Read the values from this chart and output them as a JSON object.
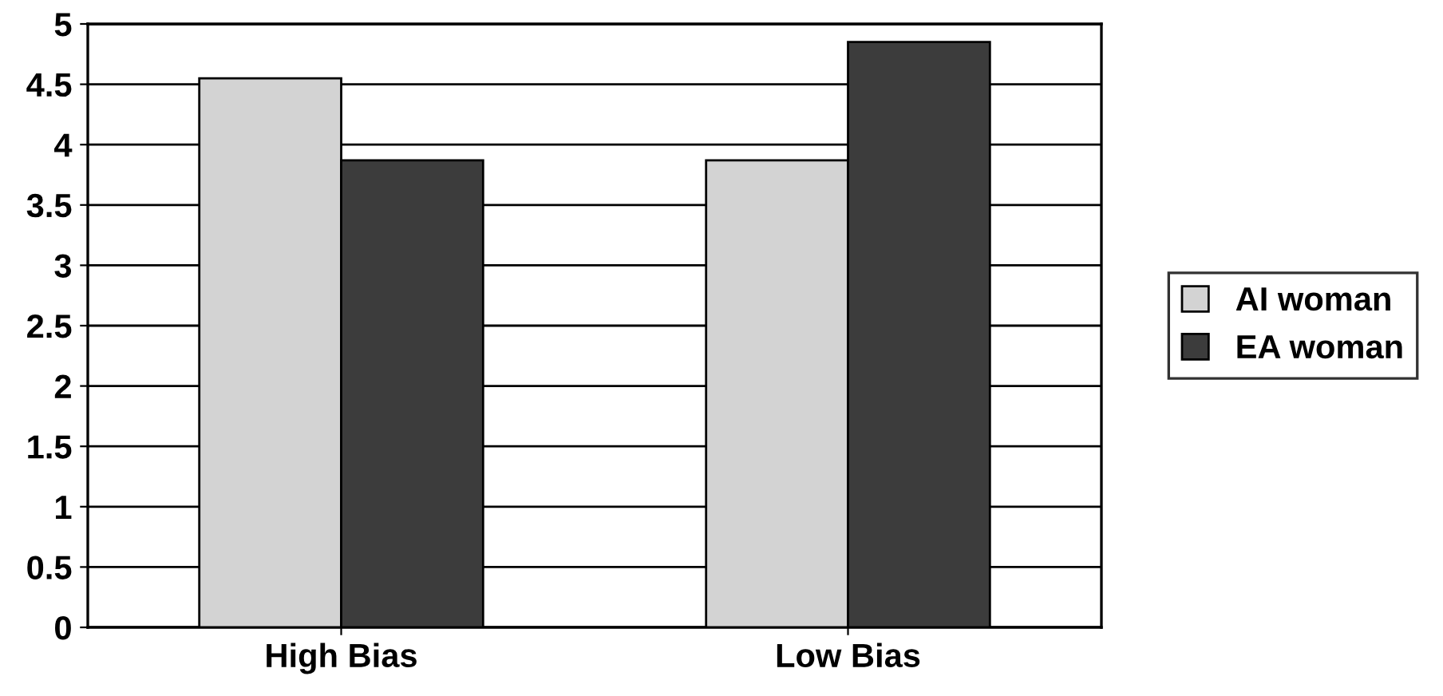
{
  "chart_data": {
    "type": "bar",
    "categories": [
      "High Bias",
      "Low Bias"
    ],
    "series": [
      {
        "name": "AI woman",
        "color": "#d3d3d3",
        "values": [
          4.55,
          3.87
        ]
      },
      {
        "name": "EA woman",
        "color": "#3c3c3c",
        "values": [
          3.87,
          4.85
        ]
      }
    ],
    "ylim": [
      0,
      5
    ],
    "yticks": [
      0,
      0.5,
      1,
      1.5,
      2,
      2.5,
      3,
      3.5,
      4,
      4.5,
      5
    ],
    "grid": "y",
    "legend": "right"
  }
}
